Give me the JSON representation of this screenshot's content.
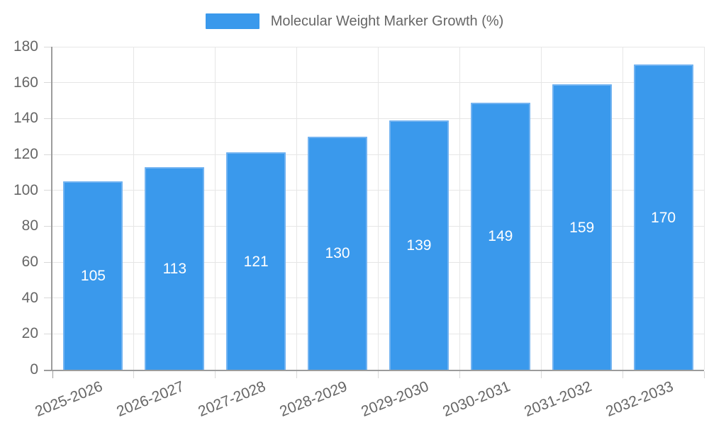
{
  "legend": {
    "label": "Molecular Weight Marker Growth (%)"
  },
  "chart_data": {
    "type": "bar",
    "title": "",
    "legend_label": "Molecular Weight Marker Growth (%)",
    "legend_position": "top-center",
    "categories": [
      "2025-2026",
      "2026-2027",
      "2027-2028",
      "2028-2029",
      "2029-2030",
      "2030-2031",
      "2031-2032",
      "2032-2033"
    ],
    "values": [
      105,
      113,
      121,
      130,
      139,
      149,
      159,
      170
    ],
    "xlabel": "",
    "ylabel": "",
    "ylim": [
      0,
      180
    ],
    "ytick_step": 20,
    "grid": true,
    "value_labels": "inside-center",
    "colors": {
      "bar_fill": "#3a99ec",
      "bar_border": "#72b3f1",
      "value_label": "#ffffff",
      "axis_text": "#666666",
      "gridline": "#e6e6e6",
      "axis_line": "#9c9c9c",
      "tick": "#d9d9d9"
    }
  }
}
